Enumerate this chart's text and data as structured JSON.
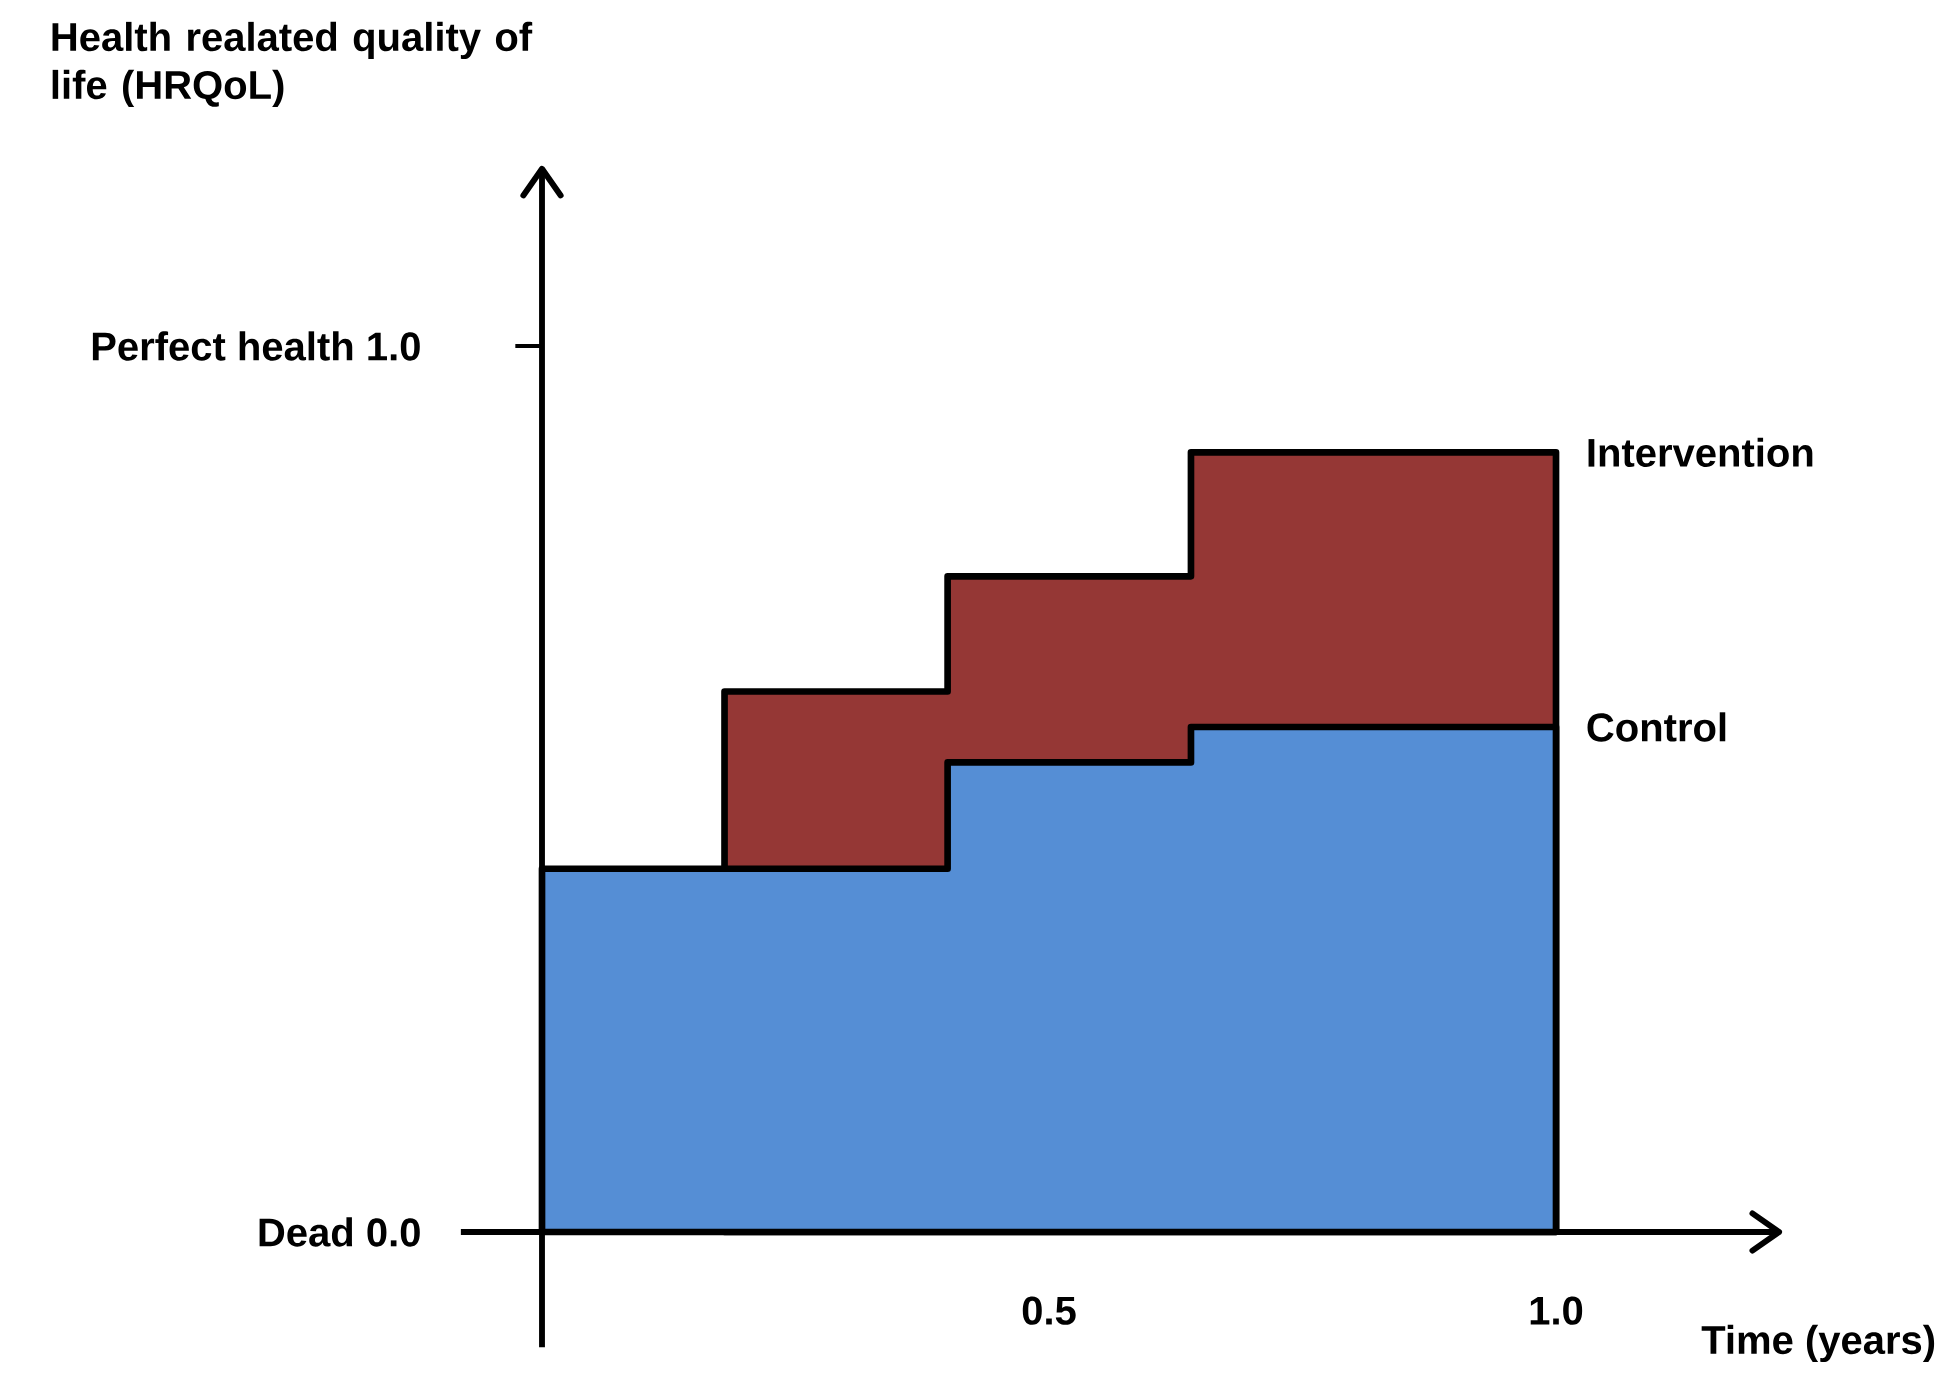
{
  "chart_data": {
    "type": "area",
    "ylabel": "Health realated quality of life (HRQoL)",
    "xlabel": "Time (years)",
    "xlim": [
      -0.08,
      1.22
    ],
    "ylim": [
      -0.13,
      1.2
    ],
    "xticks": [
      0.5,
      {
        "value": 1.0,
        "label": "1.0"
      }
    ],
    "yticks": [
      {
        "value": 0,
        "label": "0.0"
      },
      {
        "value": 1,
        "label": "1.0"
      }
    ],
    "annotations": [
      "Dead",
      "Perfect health"
    ],
    "series": [
      {
        "name": "Control",
        "color": "#558ed5",
        "x": [
          0,
          0.4,
          0.4,
          0.64,
          0.64,
          1.0
        ],
        "values": [
          0.41,
          0.41,
          0.53,
          0.53,
          0.57,
          0.57
        ]
      },
      {
        "name": "Intervention",
        "color": "#953735",
        "x": [
          0.18,
          0.4,
          0.4,
          0.64,
          0.64,
          1.0
        ],
        "values": [
          0.61,
          0.61,
          0.74,
          0.74,
          0.88,
          0.88
        ]
      }
    ]
  }
}
